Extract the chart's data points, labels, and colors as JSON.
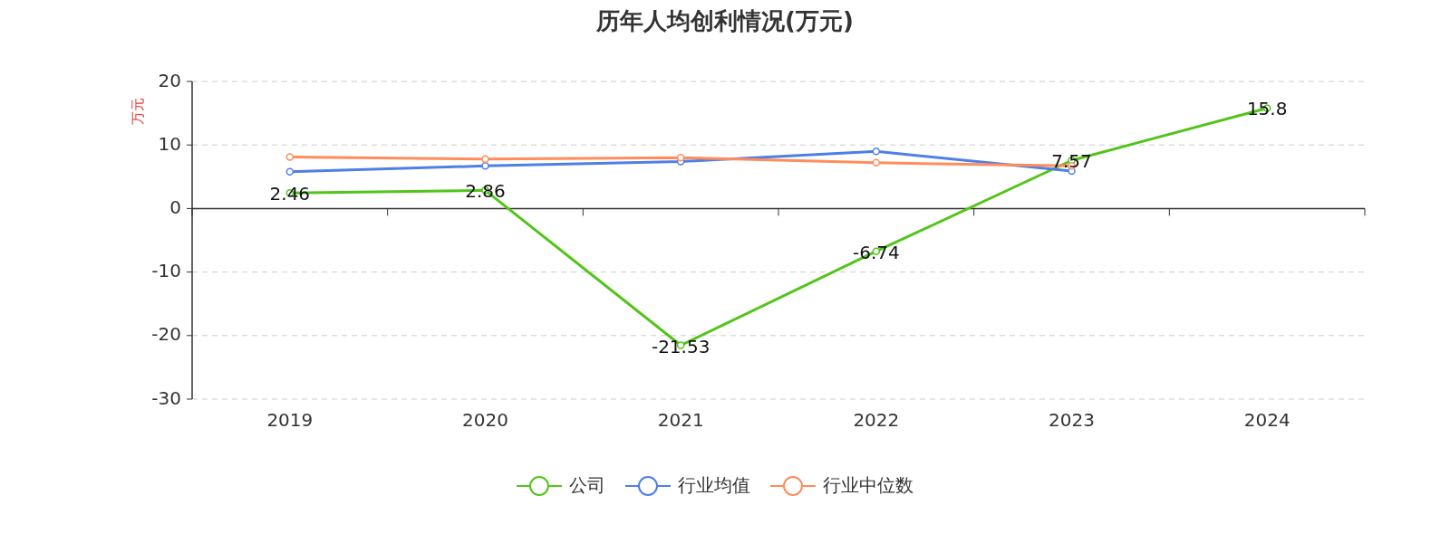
{
  "chart_data": {
    "type": "line",
    "title": "历年人均创利情况(万元)",
    "ylabel": "万元",
    "categories": [
      "2019",
      "2020",
      "2021",
      "2022",
      "2023",
      "2024"
    ],
    "series": [
      {
        "name": "公司",
        "color": "#52c41a",
        "values": [
          2.46,
          2.86,
          -21.53,
          -6.74,
          7.57,
          15.8
        ],
        "value_labels": [
          "2.46",
          "2.86",
          "-21.53",
          "-6.74",
          "7.57",
          "15.8"
        ]
      },
      {
        "name": "行业均值",
        "color": "#4e7fe6",
        "values": [
          5.8,
          6.7,
          7.4,
          9.0,
          5.9,
          null
        ]
      },
      {
        "name": "行业中位数",
        "color": "#ff8c5a",
        "values": [
          8.1,
          7.8,
          8.0,
          7.2,
          6.7,
          null
        ]
      }
    ],
    "ylim": [
      -30,
      20
    ],
    "yticks": [
      -30,
      -20,
      -10,
      0,
      10,
      20
    ],
    "grid": "y",
    "legend": "bottom",
    "marker": "circle"
  }
}
